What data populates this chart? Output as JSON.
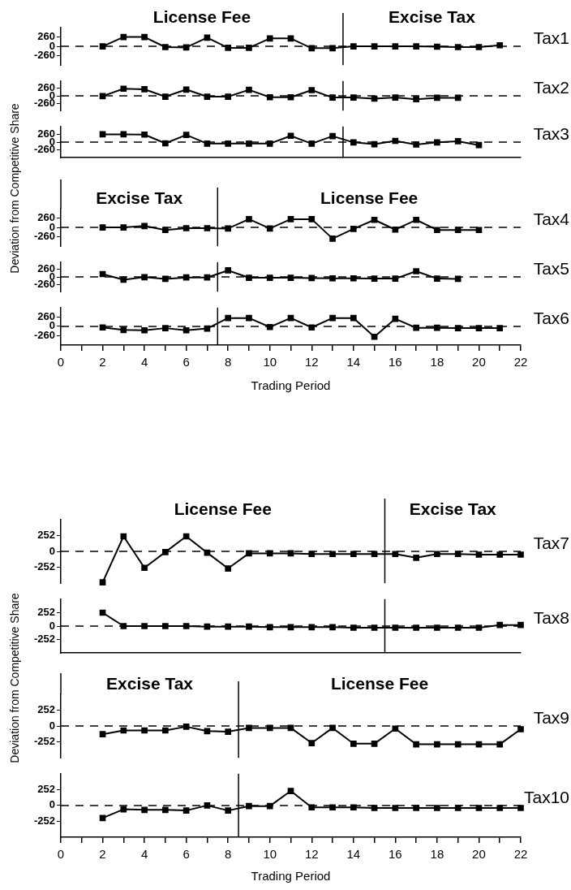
{
  "chart_data": [
    {
      "type": "line",
      "ylabel": "Deviation from Competitive Share",
      "annotations": [
        "License Fee",
        "Excise Tax"
      ],
      "x": [
        2,
        3,
        4,
        5,
        6,
        7,
        8,
        9,
        10,
        11,
        12,
        13,
        14,
        15,
        16,
        17,
        18,
        19,
        20,
        21
      ],
      "xlim": [
        0,
        22
      ],
      "ylim": [
        -520,
        520
      ],
      "yticks": [
        -260,
        0,
        260
      ],
      "tick_labels": "y",
      "marker": "square",
      "line_style": "solid",
      "series": [
        {
          "name": "Tax1",
          "color": "#000000",
          "values": [
            0,
            260,
            260,
            -20,
            -30,
            240,
            -40,
            -40,
            220,
            220,
            -50,
            -50,
            0,
            0,
            0,
            0,
            -10,
            -20,
            -20,
            30
          ]
        }
      ],
      "ref_lines": [
        {
          "axis": "y",
          "value": 0,
          "line_style": "dashed"
        },
        {
          "axis": "x",
          "value": 13.5,
          "line_style": "solid"
        }
      ]
    },
    {
      "type": "line",
      "x": [
        2,
        3,
        4,
        5,
        6,
        7,
        8,
        9,
        10,
        11,
        12,
        13,
        14,
        15,
        16,
        17,
        18,
        19
      ],
      "xlim": [
        0,
        22
      ],
      "ylim": [
        -520,
        520
      ],
      "yticks": [
        -260,
        0,
        260
      ],
      "tick_labels": "y",
      "marker": "square",
      "line_style": "solid",
      "series": [
        {
          "name": "Tax2",
          "color": "#000000",
          "values": [
            -10,
            250,
            230,
            -30,
            220,
            -30,
            -30,
            210,
            -50,
            -50,
            200,
            -60,
            -60,
            -100,
            -60,
            -120,
            -70,
            -70
          ]
        }
      ],
      "ref_lines": [
        {
          "axis": "y",
          "value": 0,
          "line_style": "dashed"
        },
        {
          "axis": "x",
          "value": 13.5,
          "line_style": "solid"
        }
      ]
    },
    {
      "type": "line",
      "x": [
        2,
        3,
        4,
        5,
        6,
        7,
        8,
        9,
        10,
        11,
        12,
        13,
        14,
        15,
        16,
        17,
        18,
        19,
        20
      ],
      "xlim": [
        0,
        22
      ],
      "ylim": [
        -520,
        520
      ],
      "yticks": [
        -260,
        0,
        260
      ],
      "tick_labels": "y",
      "marker": "square",
      "line_style": "solid",
      "series": [
        {
          "name": "Tax3",
          "color": "#000000",
          "values": [
            260,
            260,
            250,
            -40,
            240,
            -50,
            -50,
            -50,
            -50,
            210,
            -50,
            200,
            -10,
            -70,
            40,
            -80,
            -10,
            30,
            -100
          ]
        }
      ],
      "ref_lines": [
        {
          "axis": "y",
          "value": 0,
          "line_style": "dashed"
        },
        {
          "axis": "x",
          "value": 13.5,
          "line_style": "solid"
        }
      ]
    },
    {
      "type": "line",
      "annotations": [
        "Excise Tax",
        "License Fee"
      ],
      "x": [
        2,
        3,
        4,
        5,
        6,
        7,
        8,
        9,
        10,
        11,
        12,
        13,
        14,
        15,
        16,
        17,
        18,
        19,
        20
      ],
      "xlim": [
        0,
        22
      ],
      "ylim": [
        -520,
        520
      ],
      "yticks": [
        -260,
        0,
        260
      ],
      "tick_labels": "y",
      "marker": "square",
      "line_style": "solid",
      "series": [
        {
          "name": "Tax4",
          "color": "#000000",
          "values": [
            0,
            0,
            40,
            -70,
            -20,
            -20,
            -30,
            230,
            -30,
            230,
            230,
            -310,
            -40,
            210,
            -60,
            210,
            -70,
            -70,
            -70
          ]
        }
      ],
      "ref_lines": [
        {
          "axis": "y",
          "value": 0,
          "line_style": "dashed"
        },
        {
          "axis": "x",
          "value": 7.5,
          "line_style": "solid"
        }
      ]
    },
    {
      "type": "line",
      "x": [
        2,
        3,
        4,
        5,
        6,
        7,
        8,
        9,
        10,
        11,
        12,
        13,
        14,
        15,
        16,
        17,
        18,
        19
      ],
      "xlim": [
        0,
        22
      ],
      "ylim": [
        -520,
        520
      ],
      "yticks": [
        -260,
        0,
        260
      ],
      "tick_labels": "y",
      "marker": "square",
      "line_style": "solid",
      "series": [
        {
          "name": "Tax5",
          "color": "#000000",
          "values": [
            100,
            -100,
            -10,
            -70,
            -20,
            -20,
            230,
            -30,
            -30,
            -30,
            -40,
            -50,
            -50,
            -60,
            -60,
            200,
            -60,
            -70
          ]
        }
      ],
      "ref_lines": [
        {
          "axis": "y",
          "value": 0,
          "line_style": "dashed"
        },
        {
          "axis": "x",
          "value": 7.5,
          "line_style": "solid"
        }
      ]
    },
    {
      "type": "line",
      "xlabel": "Trading Period",
      "x": [
        2,
        3,
        4,
        5,
        6,
        7,
        8,
        9,
        10,
        11,
        12,
        13,
        14,
        15,
        16,
        17,
        18,
        19,
        20,
        21
      ],
      "xlim": [
        0,
        22
      ],
      "xticks": [
        0,
        {
          "value": 1,
          "label": null
        },
        2,
        {
          "value": 3,
          "label": null
        },
        4,
        {
          "value": 5,
          "label": null
        },
        6,
        {
          "value": 7,
          "label": null
        },
        8,
        {
          "value": 9,
          "label": null
        },
        10,
        {
          "value": 11,
          "label": null
        },
        12,
        {
          "value": 13,
          "label": null
        },
        14,
        {
          "value": 15,
          "label": null
        },
        16,
        {
          "value": 17,
          "label": null
        },
        18,
        {
          "value": 19,
          "label": null
        },
        20,
        {
          "value": 21,
          "label": null
        },
        22
      ],
      "ylim": [
        -520,
        520
      ],
      "yticks": [
        -260,
        0,
        260
      ],
      "marker": "square",
      "line_style": "solid",
      "series": [
        {
          "name": "Tax6",
          "color": "#000000",
          "values": [
            -30,
            -100,
            -110,
            -50,
            -110,
            -60,
            230,
            230,
            -20,
            230,
            -30,
            230,
            230,
            -290,
            210,
            -40,
            -40,
            -50,
            -50,
            -50
          ]
        }
      ],
      "ref_lines": [
        {
          "axis": "y",
          "value": 0,
          "line_style": "dashed"
        },
        {
          "axis": "x",
          "value": 7.5,
          "line_style": "solid"
        }
      ]
    },
    {
      "type": "line",
      "ylabel": "Deviation from Competitive Share",
      "annotations": [
        "License Fee",
        "Excise Tax"
      ],
      "x": [
        2,
        3,
        4,
        5,
        6,
        7,
        8,
        9,
        10,
        11,
        12,
        13,
        14,
        15,
        16,
        17,
        18,
        19,
        20,
        21,
        22
      ],
      "xlim": [
        0,
        22
      ],
      "ylim": [
        -504,
        504
      ],
      "yticks": [
        -252,
        0,
        252
      ],
      "tick_labels": "y",
      "marker": "square",
      "line_style": "solid",
      "series": [
        {
          "name": "Tax7",
          "color": "#000000",
          "values": [
            -490,
            240,
            -260,
            -10,
            240,
            -20,
            -270,
            -30,
            -30,
            -30,
            -40,
            -40,
            -40,
            -40,
            -40,
            -100,
            -40,
            -40,
            -50,
            -50,
            -50
          ]
        }
      ],
      "ref_lines": [
        {
          "axis": "y",
          "value": 0,
          "line_style": "dashed"
        },
        {
          "axis": "x",
          "value": 15.5,
          "line_style": "solid"
        }
      ]
    },
    {
      "type": "line",
      "x": [
        2,
        3,
        4,
        5,
        6,
        7,
        8,
        9,
        10,
        11,
        12,
        13,
        14,
        15,
        16,
        17,
        18,
        19,
        20,
        21,
        22
      ],
      "xlim": [
        0,
        22
      ],
      "ylim": [
        -504,
        504
      ],
      "yticks": [
        -252,
        0,
        252
      ],
      "tick_labels": "y",
      "marker": "square",
      "line_style": "solid",
      "series": [
        {
          "name": "Tax8",
          "color": "#000000",
          "values": [
            250,
            0,
            0,
            0,
            0,
            -10,
            -10,
            -10,
            -20,
            -20,
            -20,
            -20,
            -30,
            -30,
            -30,
            -30,
            -30,
            -30,
            -30,
            20,
            20
          ]
        }
      ],
      "ref_lines": [
        {
          "axis": "y",
          "value": 0,
          "line_style": "dashed"
        },
        {
          "axis": "x",
          "value": 15.5,
          "line_style": "solid"
        }
      ]
    },
    {
      "type": "line",
      "annotations": [
        "Excise Tax",
        "License Fee"
      ],
      "x": [
        2,
        3,
        4,
        5,
        6,
        7,
        8,
        9,
        10,
        11,
        12,
        13,
        14,
        15,
        16,
        17,
        18,
        19,
        20,
        21,
        22
      ],
      "xlim": [
        0,
        22
      ],
      "ylim": [
        -504,
        504
      ],
      "yticks": [
        -252,
        0,
        252
      ],
      "tick_labels": "y",
      "marker": "square",
      "line_style": "solid",
      "series": [
        {
          "name": "Tax9",
          "color": "#000000",
          "values": [
            -130,
            -70,
            -70,
            -70,
            -10,
            -80,
            -90,
            -30,
            -30,
            -30,
            -270,
            -30,
            -280,
            -280,
            -40,
            -290,
            -290,
            -290,
            -290,
            -290,
            -50
          ]
        }
      ],
      "ref_lines": [
        {
          "axis": "y",
          "value": 0,
          "line_style": "dashed"
        },
        {
          "axis": "x",
          "value": 8.5,
          "line_style": "solid"
        }
      ]
    },
    {
      "type": "line",
      "xlabel": "Trading Period",
      "x": [
        2,
        3,
        4,
        5,
        6,
        7,
        8,
        9,
        10,
        11,
        12,
        13,
        14,
        15,
        16,
        17,
        18,
        19,
        20,
        21,
        22
      ],
      "xlim": [
        0,
        22
      ],
      "xticks": [
        0,
        {
          "value": 1,
          "label": null
        },
        2,
        {
          "value": 3,
          "label": null
        },
        4,
        {
          "value": 5,
          "label": null
        },
        6,
        {
          "value": 7,
          "label": null
        },
        8,
        {
          "value": 9,
          "label": null
        },
        10,
        {
          "value": 11,
          "label": null
        },
        12,
        {
          "value": 13,
          "label": null
        },
        14,
        {
          "value": 15,
          "label": null
        },
        16,
        {
          "value": 17,
          "label": null
        },
        18,
        {
          "value": 19,
          "label": null
        },
        20,
        {
          "value": 21,
          "label": null
        },
        22
      ],
      "ylim": [
        -504,
        504
      ],
      "yticks": [
        -252,
        0,
        252
      ],
      "marker": "square",
      "line_style": "solid",
      "series": [
        {
          "name": "Tax10",
          "color": "#000000",
          "values": [
            -200,
            -60,
            -70,
            -70,
            -80,
            0,
            -80,
            -10,
            -10,
            230,
            -30,
            -30,
            -30,
            -40,
            -40,
            -40,
            -40,
            -40,
            -40,
            -40,
            -40
          ]
        }
      ],
      "ref_lines": [
        {
          "axis": "y",
          "value": 0,
          "line_style": "dashed"
        },
        {
          "axis": "x",
          "value": 8.5,
          "line_style": "solid"
        }
      ]
    }
  ]
}
